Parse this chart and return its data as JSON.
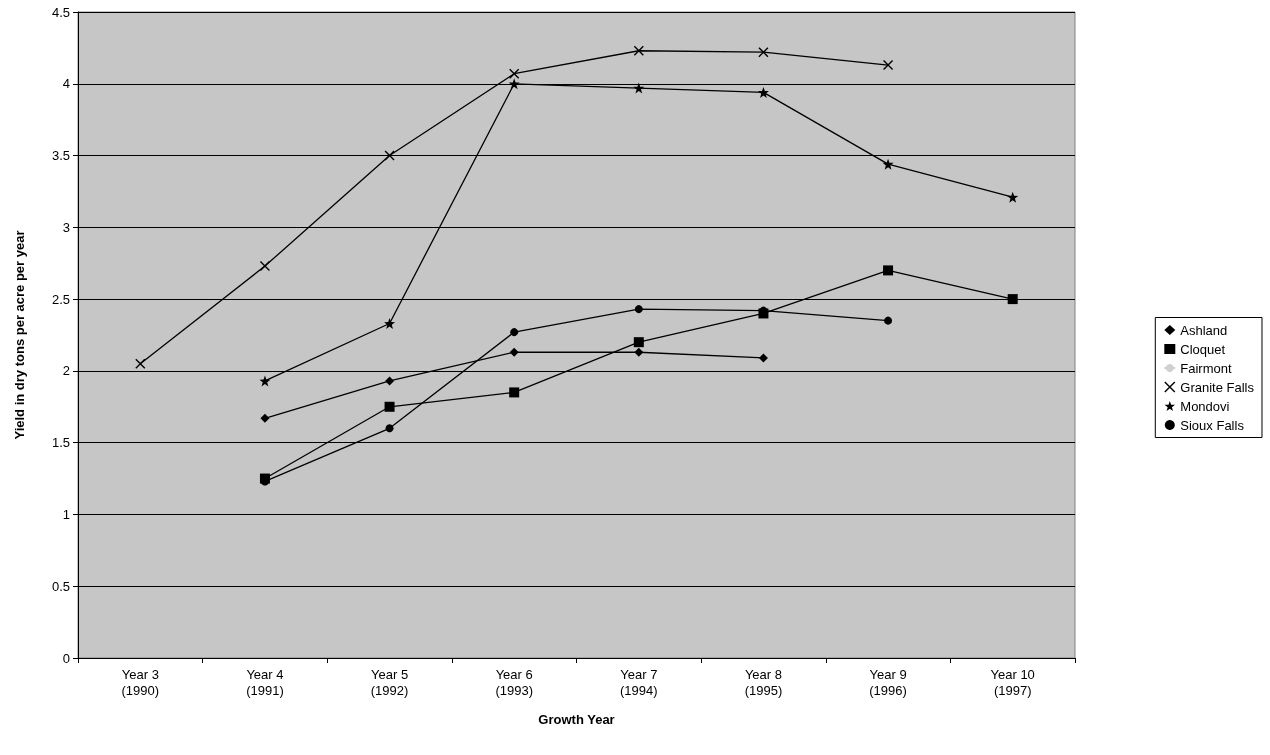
{
  "chart_data": {
    "type": "line",
    "xlabel": "Growth Year",
    "ylabel": "Yield in dry tons per acre per year",
    "categories": [
      "Year 3\n(1990)",
      "Year 4\n(1991)",
      "Year 5\n(1992)",
      "Year 6\n(1993)",
      "Year 7\n(1994)",
      "Year 8\n(1995)",
      "Year 9\n(1996)",
      "Year 10\n(1997)"
    ],
    "series": [
      {
        "name": "Ashland",
        "color": "#000000",
        "marker": "diamond",
        "values": [
          null,
          1.67,
          1.93,
          2.13,
          2.13,
          2.09,
          null,
          null
        ]
      },
      {
        "name": "Cloquet",
        "color": "#000000",
        "marker": "square",
        "values": [
          null,
          1.25,
          1.75,
          1.85,
          2.2,
          2.4,
          2.7,
          2.5
        ]
      },
      {
        "name": "Fairmont",
        "color": "#d0d0d0",
        "marker": "none",
        "values": [
          null,
          null,
          null,
          null,
          null,
          null,
          null,
          null
        ]
      },
      {
        "name": "Granite Falls",
        "color": "#000000",
        "marker": "cross",
        "values": [
          2.05,
          2.73,
          3.5,
          4.07,
          4.23,
          4.22,
          4.13,
          null
        ]
      },
      {
        "name": "Mondovi",
        "color": "#000000",
        "marker": "star",
        "values": [
          null,
          1.93,
          2.33,
          4.0,
          3.97,
          3.94,
          3.44,
          3.21
        ]
      },
      {
        "name": "Sioux Falls",
        "color": "#000000",
        "marker": "circle",
        "values": [
          null,
          1.23,
          1.6,
          2.27,
          2.43,
          2.42,
          2.35,
          null
        ]
      }
    ],
    "ylim": [
      0,
      4.5
    ],
    "yticks": [
      0,
      0.5,
      1,
      1.5,
      2,
      2.5,
      3,
      3.5,
      4,
      4.5
    ],
    "grid": "y",
    "legend": "right",
    "line_style": "solid"
  }
}
